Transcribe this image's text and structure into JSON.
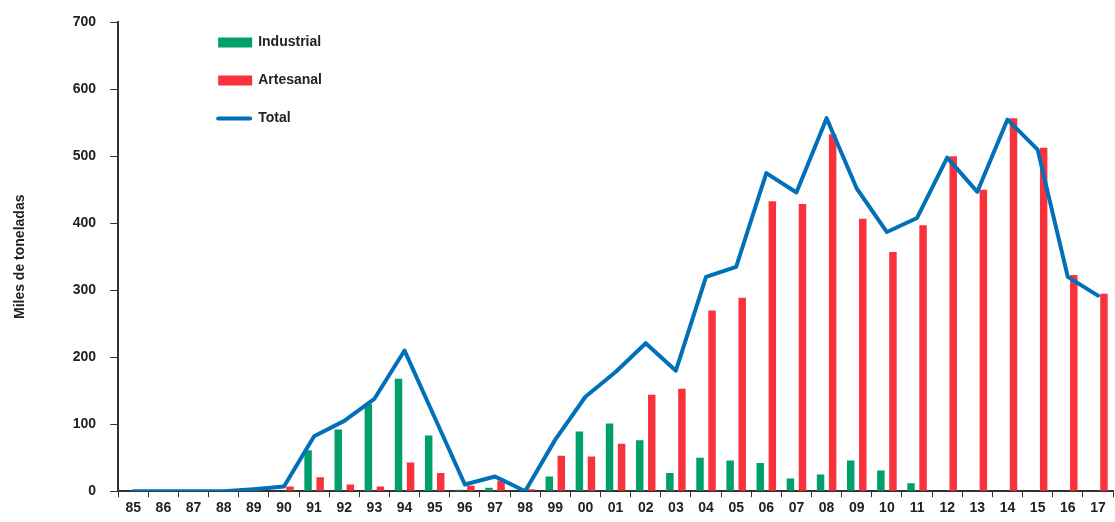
{
  "chart_data": {
    "type": "bar",
    "ylabel": "Miles de toneladas",
    "categories": [
      "85",
      "86",
      "87",
      "88",
      "89",
      "90",
      "91",
      "92",
      "93",
      "94",
      "95",
      "96",
      "97",
      "98",
      "99",
      "00",
      "01",
      "02",
      "03",
      "04",
      "05",
      "06",
      "07",
      "08",
      "09",
      "10",
      "11",
      "12",
      "13",
      "14",
      "15",
      "16",
      "17"
    ],
    "series": [
      {
        "name": "Industrial",
        "color": "#00a06a",
        "values": [
          0,
          0,
          0,
          0,
          0,
          0,
          61,
          92,
          130,
          168,
          83,
          2,
          5,
          0,
          22,
          89,
          101,
          76,
          27,
          50,
          46,
          42,
          19,
          25,
          46,
          31,
          12,
          0,
          0,
          0,
          0,
          0,
          0
        ]
      },
      {
        "name": "Artesanal",
        "color": "#f8333c",
        "values": [
          0,
          0,
          0,
          0,
          0,
          7,
          21,
          10,
          7,
          43,
          27,
          8,
          16,
          3,
          53,
          52,
          71,
          144,
          153,
          270,
          289,
          433,
          429,
          533,
          407,
          357,
          397,
          500,
          450,
          557,
          513,
          323,
          295
        ]
      },
      {
        "name": "Total",
        "type": "line",
        "color": "#0070b8",
        "values": [
          0,
          0,
          0,
          0,
          3,
          7,
          82,
          105,
          138,
          210,
          110,
          10,
          22,
          0,
          77,
          141,
          178,
          221,
          180,
          320,
          335,
          475,
          446,
          557,
          452,
          387,
          408,
          498,
          447,
          555,
          510,
          320,
          292
        ]
      }
    ],
    "ylim": [
      0,
      700
    ],
    "yticks": [
      0,
      100,
      200,
      300,
      400,
      500,
      600,
      700
    ],
    "grid": false,
    "legend": "top left",
    "marker": "none",
    "line_style": "solid"
  }
}
